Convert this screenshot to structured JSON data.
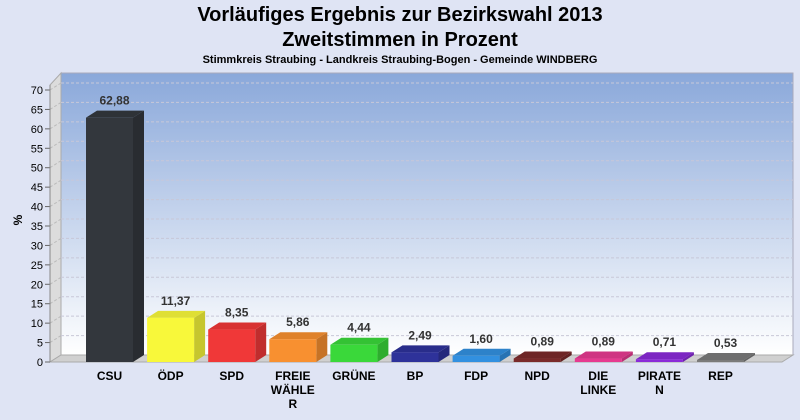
{
  "chart_data": {
    "type": "bar",
    "title": "Vorläufiges Ergebnis zur Bezirkswahl 2013",
    "subtitle": "Zweitstimmen in Prozent",
    "subtitle2": "Stimmkreis Straubing - Landkreis Straubing-Bogen - Gemeinde WINDBERG",
    "xlabel": "",
    "ylabel": "%",
    "ylim": [
      0,
      70
    ],
    "yticks": [
      "0",
      "5",
      "10",
      "15",
      "20",
      "25",
      "30",
      "35",
      "40",
      "45",
      "50",
      "55",
      "60",
      "65",
      "70"
    ],
    "grid": true,
    "categories": [
      [
        "CSU"
      ],
      [
        "ÖDP"
      ],
      [
        "SPD"
      ],
      [
        "FREIE",
        "WÄHLE",
        "R"
      ],
      [
        "GRÜNE"
      ],
      [
        "BP"
      ],
      [
        "FDP"
      ],
      [
        "NPD"
      ],
      [
        "DIE",
        "LINKE"
      ],
      [
        "PIRATE",
        "N"
      ],
      [
        "REP"
      ]
    ],
    "values": [
      62.88,
      11.37,
      8.35,
      5.86,
      4.44,
      2.49,
      1.6,
      0.89,
      0.89,
      0.71,
      0.53
    ],
    "labels": [
      "62,88",
      "11,37",
      "8,35",
      "5,86",
      "4,44",
      "2,49",
      "1,60",
      "0,89",
      "0,89",
      "0,71",
      "0,53"
    ],
    "colors": [
      "#33373d",
      "#f8f83a",
      "#f03838",
      "#f89030",
      "#3ad83a",
      "#2e329a",
      "#3290e0",
      "#7a2a2a",
      "#e63a90",
      "#8a2ad8",
      "#7a7a7a"
    ]
  }
}
